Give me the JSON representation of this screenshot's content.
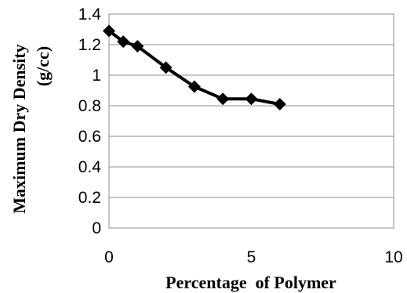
{
  "chart_data": {
    "type": "line",
    "xlabel": "Percentage  of Polymer",
    "ylabel_line1": "Maximum Dry Density",
    "ylabel_line2": "(g/cc)",
    "xlim": [
      0,
      10
    ],
    "ylim": [
      0,
      1.4
    ],
    "x_ticks": [
      0,
      5,
      10
    ],
    "y_ticks": [
      0,
      0.2,
      0.4,
      0.6,
      0.8,
      1,
      1.2,
      1.4
    ],
    "x_tick_labels": [
      "0",
      "5",
      "10"
    ],
    "y_tick_labels": [
      "0",
      "0.2",
      "0.4",
      "0.6",
      "0.8",
      "1",
      "1.2",
      "1.4"
    ],
    "grid": "horizontal",
    "series": [
      {
        "x": [
          0,
          0.5,
          1,
          2,
          3,
          4,
          5,
          6
        ],
        "values": [
          1.29,
          1.22,
          1.19,
          1.05,
          0.925,
          0.845,
          0.845,
          0.81
        ],
        "marker": "diamond",
        "color": "#000000"
      }
    ]
  }
}
